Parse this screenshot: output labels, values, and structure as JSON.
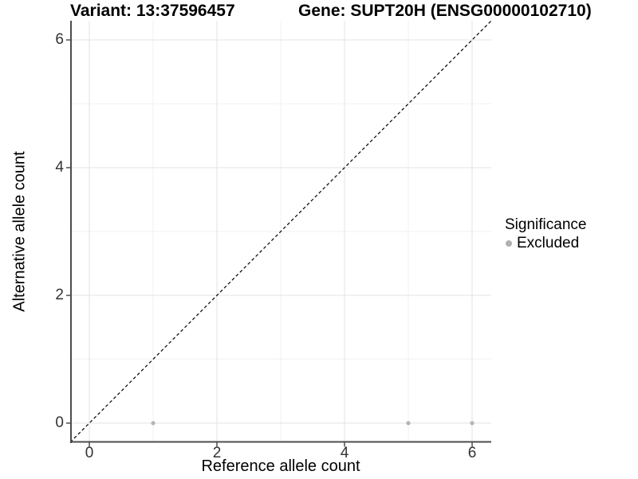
{
  "figure": {
    "title_left": "Variant: 13:37596457",
    "title_right": "Gene: SUPT20H (ENSG00000102710)"
  },
  "chart_data": {
    "type": "scatter",
    "title": "Variant: 13:37596457 / Gene: SUPT20H (ENSG00000102710)",
    "xlabel": "Reference allele count",
    "ylabel": "Alternative allele count",
    "xlim": [
      -0.3,
      6.3
    ],
    "ylim": [
      -0.3,
      6.3
    ],
    "x_major_ticks": [
      0,
      2,
      4,
      6
    ],
    "y_major_ticks": [
      0,
      2,
      4,
      6
    ],
    "x_minor_gridlines": [
      1,
      3,
      5
    ],
    "y_minor_gridlines": [
      1,
      3,
      5
    ],
    "grid": "major+minor",
    "identity_line": {
      "style": "dashed",
      "color": "#000000",
      "from": [
        -0.3,
        -0.3
      ],
      "to": [
        6.3,
        6.3
      ]
    },
    "series": [
      {
        "name": "Excluded",
        "color": "#b5b5b5",
        "points": [
          [
            1,
            0
          ],
          [
            5,
            0
          ],
          [
            6,
            0
          ]
        ]
      }
    ],
    "legend": {
      "title": "Significance",
      "position": "right",
      "items": [
        {
          "label": "Excluded",
          "color": "#b0b0b0"
        }
      ]
    },
    "colors": {
      "grid_major": "#e3e3e3",
      "grid_minor": "#f0f0f0",
      "axis_line": "#4d4d4d",
      "tick_mark": "#333333",
      "tick_text": "#333333",
      "background": "#ffffff"
    }
  }
}
